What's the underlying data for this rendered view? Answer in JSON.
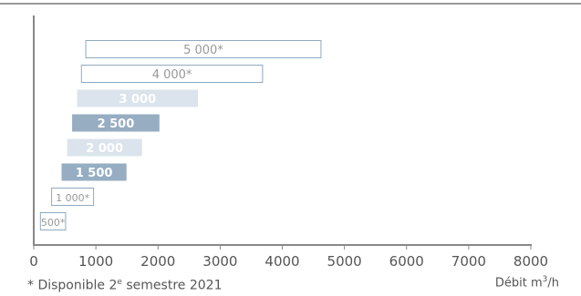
{
  "colors": {
    "topline": "#999999",
    "axis": "#888888",
    "tick_text": "#555555",
    "outline_stroke": "#8fa9c1",
    "outline_text": "#999999",
    "light_fill": "#dbe4ec",
    "dark_fill": "#96adc2",
    "filled_text": "#ffffff"
  },
  "chart_data": {
    "type": "bar",
    "orientation": "horizontal-range",
    "xlim": [
      0,
      8000
    ],
    "xticks": [
      0,
      1000,
      2000,
      3000,
      4000,
      5000,
      6000,
      7000,
      8000
    ],
    "tick_labels": [
      "0",
      "1000",
      "2000",
      "3000",
      "4000",
      "5000",
      "6000",
      "7000",
      "8000"
    ],
    "xlabel_prefix": "Débit m",
    "xlabel_sup": "3",
    "xlabel_suffix": "/h",
    "grid": false,
    "bars": [
      {
        "label": "5 000*",
        "start": 830,
        "end": 4630,
        "style": "outline"
      },
      {
        "label": "4 000*",
        "start": 760,
        "end": 3690,
        "style": "outline"
      },
      {
        "label": "3 000",
        "start": 690,
        "end": 2650,
        "style": "light"
      },
      {
        "label": "2 500",
        "start": 610,
        "end": 2030,
        "style": "dark"
      },
      {
        "label": "2 000",
        "start": 530,
        "end": 1750,
        "style": "light"
      },
      {
        "label": "1 500",
        "start": 440,
        "end": 1500,
        "style": "dark"
      },
      {
        "label": "1 000*",
        "start": 280,
        "end": 970,
        "style": "outline"
      },
      {
        "label": "500*",
        "start": 100,
        "end": 520,
        "style": "outline"
      }
    ]
  },
  "footnote": {
    "prefix": "* Disponible 2",
    "sup": "e",
    "suffix": " semestre 2021"
  }
}
